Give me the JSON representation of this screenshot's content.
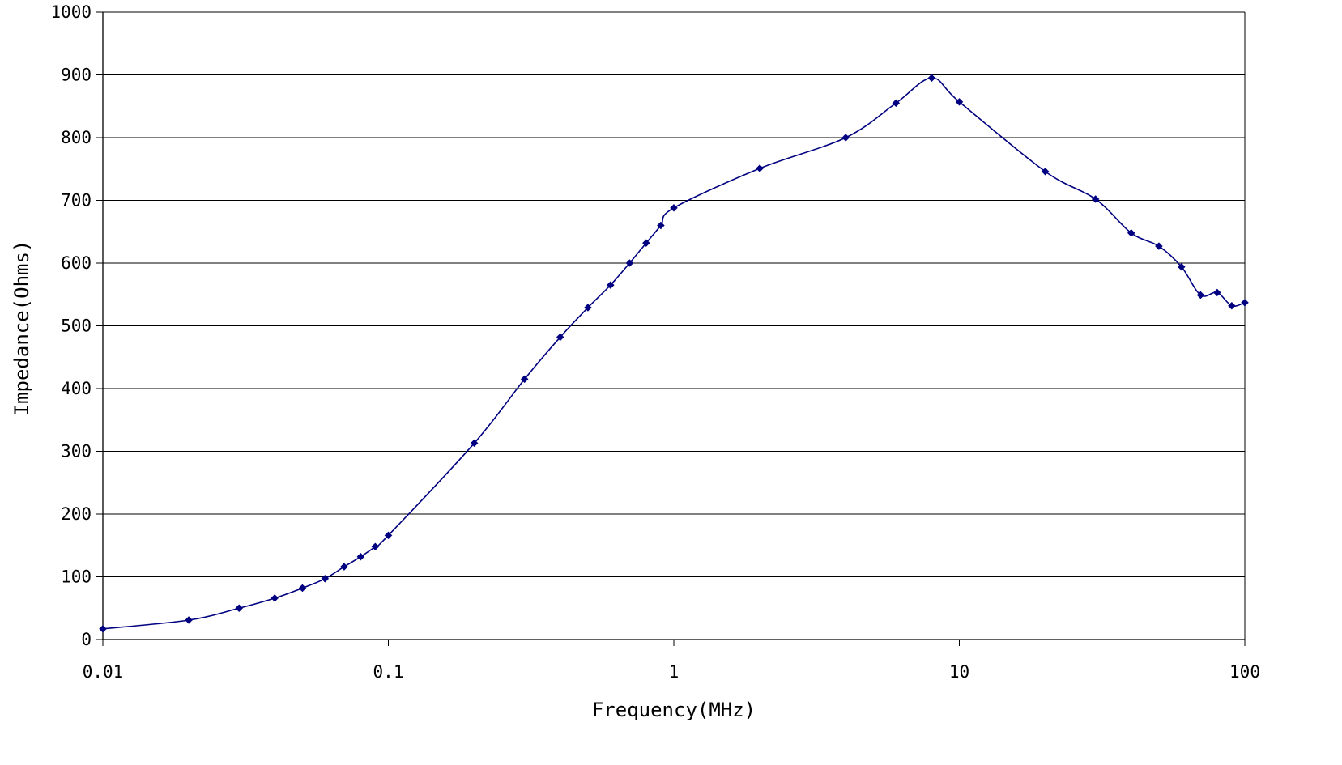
{
  "chart_data": {
    "type": "line",
    "title": "",
    "xlabel": "Frequency(MHz)",
    "ylabel": "Impedance(Ohms)",
    "x_scale": "log",
    "xlim": [
      0.01,
      100
    ],
    "ylim": [
      0,
      1000
    ],
    "x_ticks": [
      0.01,
      0.1,
      1,
      10,
      100
    ],
    "x_tick_labels": [
      "0.01",
      "0.1",
      "1",
      "10",
      "100"
    ],
    "y_ticks": [
      0,
      100,
      200,
      300,
      400,
      500,
      600,
      700,
      800,
      900,
      1000
    ],
    "y_tick_labels": [
      "0",
      "100",
      "200",
      "300",
      "400",
      "500",
      "600",
      "700",
      "800",
      "900",
      "1000"
    ],
    "grid": "horizontal",
    "legend": "none",
    "series": [
      {
        "color": "#000080",
        "marker": "diamond",
        "x": [
          0.01,
          0.02,
          0.03,
          0.04,
          0.05,
          0.06,
          0.07,
          0.08,
          0.09,
          0.1,
          0.2,
          0.3,
          0.4,
          0.5,
          0.6,
          0.7,
          0.8,
          0.9,
          1,
          2,
          4,
          6,
          8,
          10,
          20,
          30,
          40,
          50,
          60,
          70,
          80,
          90,
          100
        ],
        "y": [
          17,
          31,
          50,
          66,
          82,
          97,
          116,
          132,
          148,
          166,
          313,
          415,
          482,
          529,
          565,
          600,
          632,
          660,
          688,
          751,
          800,
          855,
          895,
          857,
          746,
          702,
          648,
          627,
          594,
          549,
          553,
          532,
          537
        ]
      }
    ]
  }
}
